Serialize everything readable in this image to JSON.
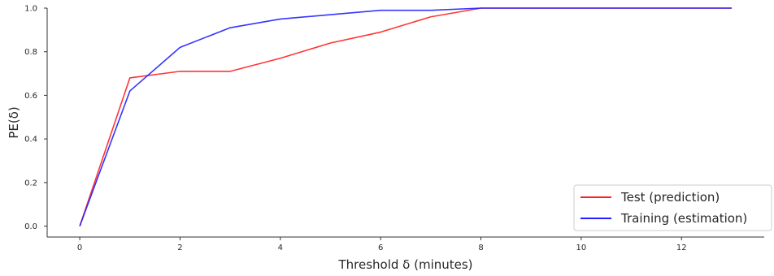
{
  "chart_data": {
    "type": "line",
    "title": "",
    "xlabel": "Threshold δ (minutes)",
    "ylabel": "PE(δ)",
    "xlim": [
      -0.65,
      13.65
    ],
    "ylim": [
      -0.05,
      1.0
    ],
    "xticks": [
      0,
      2,
      4,
      6,
      8,
      10,
      12
    ],
    "xtick_labels": [
      "0",
      "2",
      "4",
      "6",
      "8",
      "10",
      "12"
    ],
    "yticks": [
      0.0,
      0.2,
      0.4,
      0.6,
      0.8,
      1.0
    ],
    "ytick_labels": [
      "0.0",
      "0.2",
      "0.4",
      "0.6",
      "0.8",
      "1.0"
    ],
    "grid": false,
    "legend_position": "bottom-right",
    "x": [
      0,
      1,
      2,
      3,
      4,
      5,
      6,
      7,
      8,
      9,
      10,
      11,
      12,
      13
    ],
    "series": [
      {
        "name": "Test (prediction)",
        "color": "#ff1f1f",
        "values": [
          0.0,
          0.68,
          0.71,
          0.71,
          0.77,
          0.84,
          0.89,
          0.96,
          1.0,
          1.0,
          1.0,
          1.0,
          1.0,
          1.0
        ]
      },
      {
        "name": "Training (estimation)",
        "color": "#1f1fff",
        "values": [
          0.0,
          0.62,
          0.82,
          0.91,
          0.95,
          0.97,
          0.99,
          0.99,
          1.0,
          1.0,
          1.0,
          1.0,
          1.0,
          1.0
        ]
      }
    ]
  }
}
